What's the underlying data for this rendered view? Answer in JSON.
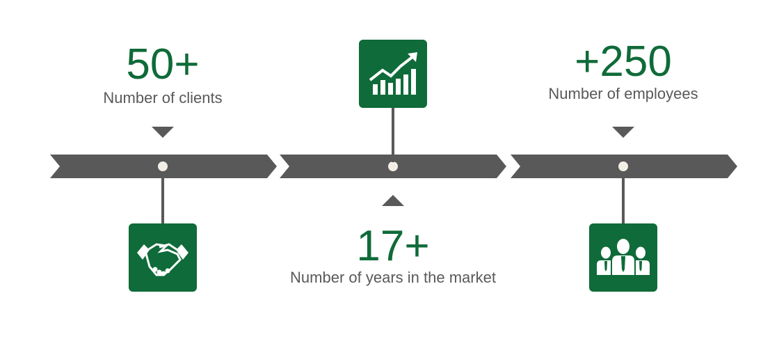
{
  "colors": {
    "accent": "#0f6b39",
    "text": "#595959",
    "bar": "#595959",
    "dot": "#f2eee6"
  },
  "milestones": [
    {
      "value": "50+",
      "label": "Number of clients",
      "icon": "handshake-icon"
    },
    {
      "value": "17+",
      "label": "Number of years in the market",
      "icon": "growth-chart-icon"
    },
    {
      "value": "+250",
      "label": "Number of employees",
      "icon": "team-icon"
    }
  ]
}
